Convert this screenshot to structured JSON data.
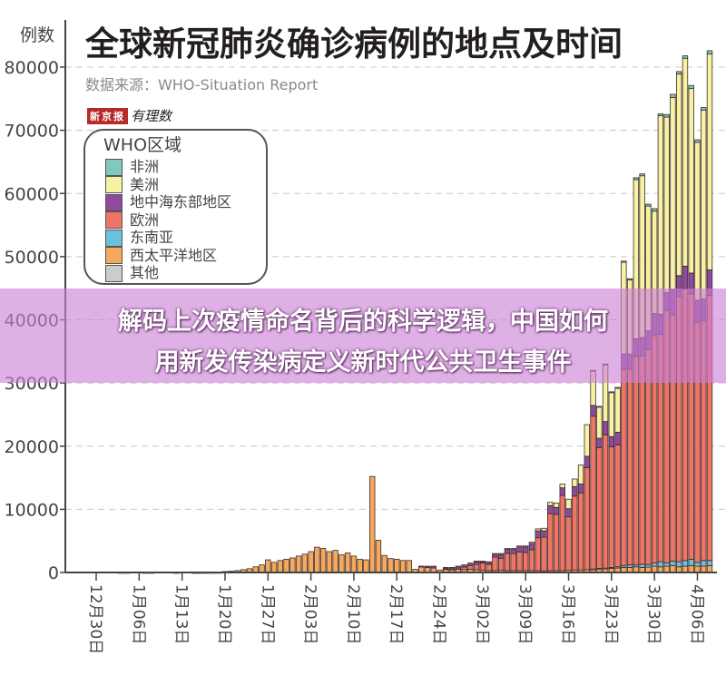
{
  "header": {
    "title": "全球新冠肺炎确诊病例的地点及时间",
    "source": "数据来源：WHO-Situation Report",
    "logo_paper": "新京报",
    "logo_brand": "有理数"
  },
  "banner": {
    "line1": "解码上次疫情命名背后的科学逻辑，中国如何",
    "line2": "用新发传染病定义新时代公共卫生事件",
    "background": "#cc80d6"
  },
  "chart_data": {
    "type": "bar",
    "stacked": true,
    "ylabel": "例数",
    "ylim": [
      0,
      80000
    ],
    "yticks": [
      "0",
      "10000",
      "20000",
      "30000",
      "40000",
      "50000",
      "60000",
      "70000",
      "80000"
    ],
    "xticks": [
      "12月30日",
      "1月06日",
      "1月13日",
      "1月20日",
      "1月27日",
      "2月03日",
      "2月10日",
      "2月17日",
      "2月24日",
      "3月02日",
      "3月09日",
      "3月16日",
      "3月23日",
      "3月30日",
      "4月06日"
    ],
    "grid": "horizontal dashed",
    "legend": {
      "title": "WHO区域",
      "placement": "left",
      "items": [
        {
          "name": "非洲",
          "color": "#7fc9bd"
        },
        {
          "name": "美洲",
          "color": "#f7f1a4"
        },
        {
          "name": "地中海东部地区",
          "color": "#8e4a9e"
        },
        {
          "name": "欧洲",
          "color": "#f07564"
        },
        {
          "name": "东南亚",
          "color": "#6cc0de"
        },
        {
          "name": "西太平洋地区",
          "color": "#f4a95c"
        },
        {
          "name": "其他",
          "color": "#cccccc"
        }
      ]
    },
    "x": [
      "1/3",
      "1/4",
      "1/5",
      "1/6",
      "1/7",
      "1/8",
      "1/9",
      "1/10",
      "1/11",
      "1/12",
      "1/13",
      "1/14",
      "1/15",
      "1/16",
      "1/17",
      "1/18",
      "1/19",
      "1/20",
      "1/21",
      "1/22",
      "1/23",
      "1/24",
      "1/25",
      "1/26",
      "1/27",
      "1/28",
      "1/29",
      "1/30",
      "1/31",
      "2/1",
      "2/2",
      "2/3",
      "2/4",
      "2/5",
      "2/6",
      "2/7",
      "2/8",
      "2/9",
      "2/10",
      "2/11",
      "2/12",
      "2/13",
      "2/14",
      "2/15",
      "2/16",
      "2/17",
      "2/18",
      "2/19",
      "2/20",
      "2/21",
      "2/22",
      "2/23",
      "2/24",
      "2/25",
      "2/26",
      "2/27",
      "2/28",
      "2/29",
      "3/1",
      "3/2",
      "3/3",
      "3/4",
      "3/5",
      "3/6",
      "3/7",
      "3/8",
      "3/9",
      "3/10",
      "3/11",
      "3/12",
      "3/13",
      "3/14",
      "3/15",
      "3/16",
      "3/17",
      "3/18",
      "3/19",
      "3/20",
      "3/21",
      "3/22",
      "3/23",
      "3/24",
      "3/25",
      "3/26",
      "3/27",
      "3/28",
      "3/29",
      "3/30",
      "3/31",
      "4/1",
      "4/2",
      "4/3",
      "4/4",
      "4/5",
      "4/6",
      "4/7",
      "4/8"
    ],
    "series": [
      {
        "name": "西太平洋地区",
        "color": "#f4a95c",
        "values": [
          20,
          20,
          0,
          0,
          15,
          15,
          0,
          0,
          0,
          10,
          0,
          0,
          5,
          10,
          15,
          20,
          30,
          150,
          200,
          300,
          450,
          600,
          900,
          1200,
          2000,
          1600,
          1900,
          2100,
          2300,
          2600,
          2900,
          3300,
          4000,
          3800,
          3300,
          3500,
          2800,
          3100,
          2600,
          2100,
          2000,
          15200,
          5100,
          2700,
          2200,
          2100,
          1900,
          1900,
          500,
          900,
          800,
          700,
          400,
          500,
          500,
          500,
          450,
          500,
          450,
          350,
          300,
          300,
          350,
          300,
          300,
          300,
          300,
          300,
          300,
          250,
          300,
          300,
          300,
          350,
          400,
          400,
          450,
          500,
          550,
          600,
          650,
          700,
          800,
          800,
          900,
          800,
          850,
          1000,
          900,
          1000,
          1100,
          900,
          1000,
          1100,
          1000,
          1000,
          1100
        ]
      },
      {
        "name": "东南亚",
        "color": "#6cc0de",
        "values": [
          0,
          0,
          0,
          0,
          0,
          0,
          0,
          0,
          0,
          0,
          0,
          0,
          0,
          0,
          0,
          0,
          0,
          0,
          0,
          0,
          0,
          0,
          0,
          0,
          0,
          0,
          0,
          0,
          0,
          0,
          0,
          0,
          0,
          0,
          0,
          0,
          0,
          0,
          0,
          0,
          0,
          0,
          0,
          0,
          0,
          0,
          0,
          0,
          0,
          0,
          0,
          0,
          0,
          0,
          0,
          0,
          0,
          0,
          0,
          0,
          0,
          0,
          0,
          0,
          0,
          0,
          0,
          0,
          0,
          0,
          0,
          0,
          0,
          0,
          0,
          0,
          0,
          50,
          100,
          100,
          150,
          200,
          300,
          400,
          300,
          500,
          400,
          500,
          800,
          500,
          700,
          800,
          900,
          1000,
          600,
          900,
          800
        ]
      },
      {
        "name": "欧洲",
        "color": "#f07564",
        "values": [
          0,
          0,
          0,
          0,
          0,
          0,
          0,
          0,
          0,
          0,
          0,
          0,
          0,
          0,
          0,
          0,
          0,
          0,
          0,
          0,
          0,
          0,
          0,
          0,
          0,
          0,
          0,
          0,
          0,
          0,
          0,
          0,
          0,
          0,
          0,
          0,
          0,
          0,
          0,
          0,
          0,
          0,
          0,
          0,
          0,
          0,
          0,
          0,
          0,
          0,
          0,
          0,
          0,
          100,
          50,
          200,
          400,
          600,
          830,
          1130,
          970,
          2150,
          1900,
          2720,
          2700,
          2950,
          2850,
          3300,
          5200,
          5350,
          9000,
          8900,
          11900,
          8450,
          11700,
          12200,
          16150,
          24200,
          19100,
          21100,
          19100,
          19300,
          31000,
          31000,
          33000,
          33000,
          34000,
          36000,
          36000,
          40000,
          39000,
          42000,
          43000,
          42000,
          38000,
          38000,
          42000
        ]
      },
      {
        "name": "地中海东部地区",
        "color": "#8e4a9e",
        "values": [
          0,
          0,
          0,
          0,
          0,
          0,
          0,
          0,
          0,
          0,
          0,
          0,
          0,
          0,
          0,
          0,
          0,
          0,
          0,
          0,
          0,
          0,
          0,
          0,
          0,
          0,
          0,
          0,
          0,
          0,
          0,
          0,
          0,
          0,
          0,
          0,
          0,
          0,
          0,
          0,
          0,
          0,
          0,
          0,
          0,
          0,
          0,
          0,
          0,
          100,
          200,
          300,
          0,
          200,
          250,
          300,
          350,
          400,
          500,
          300,
          400,
          500,
          700,
          700,
          700,
          800,
          900,
          1000,
          1100,
          1000,
          1300,
          1100,
          1200,
          1300,
          1500,
          1400,
          1800,
          1700,
          1500,
          2100,
          1600,
          2000,
          2500,
          2400,
          2800,
          2900,
          3000,
          3500,
          3200,
          2800,
          4000,
          3300,
          3600,
          3300,
          3500,
          3400,
          4000
        ]
      },
      {
        "name": "美洲",
        "color": "#f7f1a4",
        "values": [
          0,
          0,
          0,
          0,
          0,
          0,
          0,
          0,
          0,
          0,
          0,
          0,
          0,
          0,
          0,
          0,
          0,
          0,
          0,
          0,
          0,
          0,
          0,
          0,
          0,
          0,
          0,
          0,
          0,
          0,
          0,
          0,
          0,
          0,
          0,
          0,
          0,
          0,
          0,
          0,
          0,
          0,
          0,
          0,
          0,
          0,
          0,
          0,
          0,
          0,
          0,
          0,
          0,
          0,
          0,
          0,
          0,
          0,
          20,
          20,
          30,
          50,
          50,
          80,
          100,
          150,
          150,
          200,
          300,
          400,
          500,
          700,
          600,
          1500,
          1200,
          3000,
          5000,
          5500,
          5000,
          9000,
          7000,
          7000,
          14500,
          11700,
          25200,
          25600,
          19750,
          16200,
          31400,
          27800,
          30400,
          31900,
          32900,
          29200,
          25000,
          29900,
          34200
        ]
      },
      {
        "name": "非洲",
        "color": "#7fc9bd",
        "values": [
          0,
          0,
          0,
          0,
          0,
          0,
          0,
          0,
          0,
          0,
          0,
          0,
          0,
          0,
          0,
          0,
          0,
          0,
          0,
          0,
          0,
          0,
          0,
          0,
          0,
          0,
          0,
          0,
          0,
          0,
          0,
          0,
          0,
          0,
          0,
          0,
          0,
          0,
          0,
          0,
          0,
          0,
          0,
          0,
          0,
          0,
          0,
          0,
          0,
          0,
          0,
          0,
          0,
          0,
          0,
          0,
          0,
          0,
          0,
          0,
          0,
          0,
          0,
          0,
          0,
          0,
          0,
          0,
          0,
          0,
          0,
          0,
          0,
          0,
          0,
          0,
          0,
          50,
          50,
          100,
          100,
          100,
          200,
          200,
          300,
          300,
          300,
          400,
          300,
          400,
          500,
          400,
          400,
          500,
          400,
          400,
          500
        ]
      }
    ]
  }
}
